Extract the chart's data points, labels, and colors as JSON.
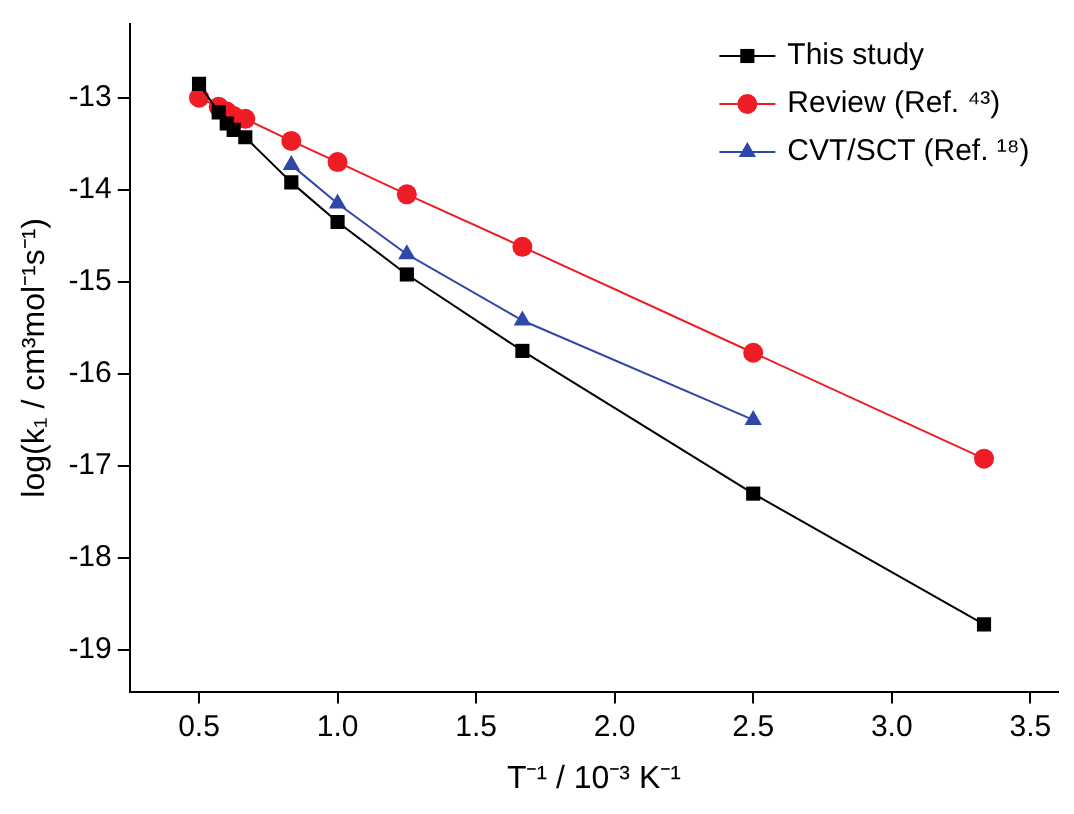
{
  "chart_data": {
    "type": "line",
    "xlabel": "T⁻¹ / 10⁻³ K⁻¹",
    "ylabel": "log(k₁ / cm³mol⁻¹s⁻¹)",
    "xlim": [
      0.25,
      3.6
    ],
    "xticks": [
      0.5,
      {
        "value": 1,
        "label": "1.0"
      },
      1.5,
      {
        "value": 2,
        "label": "2.0"
      },
      2.5,
      {
        "value": 3,
        "label": "3.0"
      },
      3.5
    ],
    "ylim": [
      -19.45,
      -12.2
    ],
    "yticks": [
      -19,
      -18,
      -17,
      -16,
      -15,
      -14,
      -13
    ],
    "grid": false,
    "legend": "top right",
    "series": [
      {
        "name": "This study",
        "color": "#000000",
        "marker": "square",
        "x": [
          0.5,
          0.571,
          0.6,
          0.625,
          0.667,
          0.833,
          1.0,
          1.25,
          1.667,
          2.5,
          3.333
        ],
        "values": [
          -12.85,
          -13.16,
          -13.28,
          -13.35,
          -13.43,
          -13.92,
          -14.35,
          -14.92,
          -15.75,
          -17.3,
          -18.72
        ]
      },
      {
        "name": "Review (Ref. ⁴³)",
        "color": "#ee1c25",
        "marker": "circle",
        "x": [
          0.5,
          0.571,
          0.6,
          0.625,
          0.667,
          0.833,
          1.0,
          1.25,
          1.667,
          2.5,
          3.333
        ],
        "values": [
          -13.0,
          -13.1,
          -13.15,
          -13.2,
          -13.23,
          -13.47,
          -13.7,
          -14.05,
          -14.62,
          -15.77,
          -16.92
        ]
      },
      {
        "name": "CVT/SCT (Ref. ¹⁸)",
        "color": "#2e47a8",
        "marker": "triangle",
        "x": [
          0.833,
          1.0,
          1.25,
          1.667,
          2.5
        ],
        "values": [
          -13.73,
          -14.15,
          -14.7,
          -15.42,
          -16.5
        ]
      }
    ]
  }
}
